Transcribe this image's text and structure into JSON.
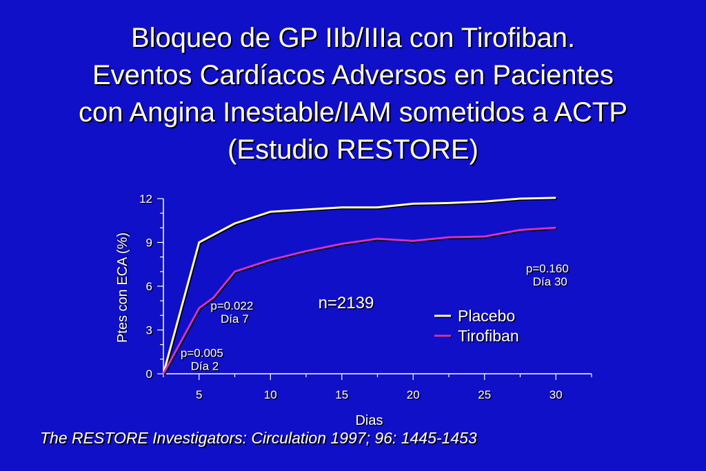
{
  "title_lines": [
    "Bloqueo de GP IIb/IIIa con Tirofiban.",
    "Eventos Cardíacos Adversos en Pacientes",
    "con Angina Inestable/IAM sometidos a ACTP",
    "(Estudio RESTORE)"
  ],
  "citation": "The RESTORE Investigators: Circulation 1997; 96: 1445-1453",
  "colors": {
    "background": "#1010c8",
    "placebo": "#ffffc0",
    "tirofiban": "#d030d0",
    "axis": "#ffffff"
  },
  "chart_data": {
    "type": "line",
    "xlabel": "Dias",
    "ylabel": "Ptes con ECA (%)",
    "xlim": [
      2.5,
      32.5
    ],
    "ylim": [
      0,
      12
    ],
    "x_ticks": [
      5,
      10,
      15,
      20,
      25,
      30
    ],
    "y_ticks": [
      0,
      3,
      6,
      9,
      12
    ],
    "series": [
      {
        "name": "Placebo",
        "color": "#ffffc0",
        "points": [
          [
            2.5,
            0
          ],
          [
            5,
            9
          ],
          [
            7.5,
            10.3
          ],
          [
            10,
            11.1
          ],
          [
            12.5,
            11.25
          ],
          [
            15,
            11.4
          ],
          [
            17.5,
            11.4
          ],
          [
            20,
            11.65
          ],
          [
            22.5,
            11.7
          ],
          [
            25,
            11.8
          ],
          [
            27.5,
            12
          ],
          [
            30,
            12.05
          ]
        ]
      },
      {
        "name": "Tirofiban",
        "color": "#d030d0",
        "points": [
          [
            2.5,
            0
          ],
          [
            5,
            4.5
          ],
          [
            6,
            5.2
          ],
          [
            7.5,
            7
          ],
          [
            10,
            7.8
          ],
          [
            12.5,
            8.4
          ],
          [
            15,
            8.9
          ],
          [
            17.5,
            9.25
          ],
          [
            20,
            9.1
          ],
          [
            22.5,
            9.35
          ],
          [
            25,
            9.4
          ],
          [
            27.5,
            9.85
          ],
          [
            30,
            10
          ]
        ]
      }
    ],
    "annotations": [
      {
        "lines": [
          "p=0.005",
          "Día 2"
        ],
        "x": 5.2,
        "y": 1.15
      },
      {
        "lines": [
          "p=0.022",
          "Día 7"
        ],
        "x": 7.3,
        "y": 4.4
      },
      {
        "lines": [
          "p=0.160",
          "Día 30"
        ],
        "x": 29.4,
        "y": 6.95
      },
      {
        "lines": [
          "n=2139"
        ],
        "x": 15.3,
        "y": 4.5,
        "large": true
      }
    ],
    "legend_position": "center-right"
  }
}
